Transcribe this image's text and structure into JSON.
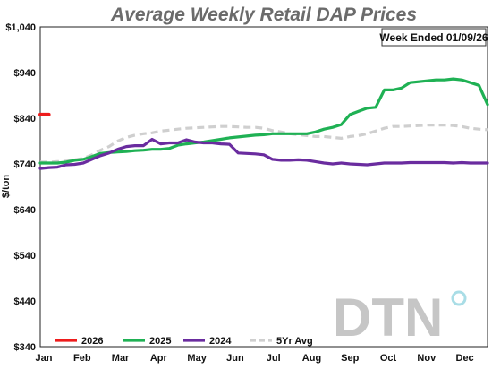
{
  "chart_data": {
    "type": "line",
    "title": "Average Weekly Retail DAP Prices",
    "annotation": "Week Ended 01/09/26",
    "ylabel": "$/ton",
    "xlabel": "",
    "ylim": [
      340,
      1040
    ],
    "yticks": [
      "$1,040",
      "$940",
      "$840",
      "$740",
      "$640",
      "$540",
      "$440",
      "$340"
    ],
    "ytick_values": [
      1040,
      940,
      840,
      740,
      640,
      540,
      440,
      340
    ],
    "xticks": [
      "Jan",
      "Feb",
      "Mar",
      "Apr",
      "May",
      "Jun",
      "Jul",
      "Aug",
      "Sep",
      "Oct",
      "Nov",
      "Dec"
    ],
    "x_unit": "week of year",
    "xlim": [
      1,
      53
    ],
    "grid": false,
    "legend_position": "bottom",
    "watermark": "DTN",
    "series": [
      {
        "name": "2026",
        "color": "#ee1c1c",
        "dash": false,
        "x": [
          1,
          2
        ],
        "y": [
          848,
          848
        ]
      },
      {
        "name": "2025",
        "color": "#1fb154",
        "dash": false,
        "x": [
          1,
          2,
          3,
          4,
          5,
          6,
          7,
          8,
          9,
          10,
          11,
          12,
          13,
          14,
          15,
          16,
          17,
          18,
          19,
          20,
          21,
          22,
          23,
          24,
          25,
          26,
          27,
          28,
          29,
          30,
          31,
          32,
          33,
          34,
          35,
          36,
          37,
          38,
          39,
          40,
          41,
          42,
          43,
          44,
          45,
          46,
          47,
          48,
          49,
          50,
          51,
          52,
          53
        ],
        "y": [
          742,
          742,
          742,
          744,
          748,
          750,
          756,
          763,
          765,
          766,
          767,
          769,
          770,
          772,
          772,
          774,
          781,
          784,
          786,
          788,
          791,
          794,
          797,
          799,
          801,
          803,
          804,
          806,
          806,
          806,
          806,
          806,
          810,
          816,
          820,
          826,
          848,
          855,
          862,
          864,
          902,
          902,
          906,
          918,
          920,
          922,
          924,
          924,
          926,
          924,
          918,
          912,
          870
        ]
      },
      {
        "name": "2024",
        "color": "#6a2c9f",
        "dash": false,
        "x": [
          1,
          2,
          3,
          4,
          5,
          6,
          7,
          8,
          9,
          10,
          11,
          12,
          13,
          14,
          15,
          16,
          17,
          18,
          19,
          20,
          21,
          22,
          23,
          24,
          25,
          26,
          27,
          28,
          29,
          30,
          31,
          32,
          33,
          34,
          35,
          36,
          37,
          38,
          39,
          40,
          41,
          42,
          43,
          44,
          45,
          46,
          47,
          48,
          49,
          50,
          51,
          52,
          53
        ],
        "y": [
          730,
          732,
          733,
          738,
          739,
          742,
          750,
          758,
          764,
          772,
          778,
          780,
          780,
          794,
          784,
          786,
          786,
          793,
          788,
          786,
          786,
          784,
          783,
          764,
          763,
          762,
          760,
          750,
          748,
          748,
          749,
          748,
          745,
          742,
          740,
          742,
          740,
          739,
          738,
          740,
          742,
          742,
          742,
          743,
          743,
          743,
          743,
          743,
          742,
          743,
          742,
          742,
          742
        ]
      },
      {
        "name": "5Yr Avg",
        "color": "#cfcfcf",
        "dash": true,
        "x": [
          1,
          2,
          3,
          4,
          5,
          6,
          7,
          8,
          9,
          10,
          11,
          12,
          13,
          14,
          15,
          16,
          17,
          18,
          19,
          20,
          21,
          22,
          23,
          24,
          25,
          26,
          27,
          28,
          29,
          30,
          31,
          32,
          33,
          34,
          35,
          36,
          37,
          38,
          39,
          40,
          41,
          42,
          43,
          44,
          45,
          46,
          47,
          48,
          49,
          50,
          51,
          52,
          53
        ],
        "y": [
          744,
          744,
          745,
          746,
          749,
          752,
          760,
          770,
          778,
          790,
          798,
          803,
          806,
          808,
          812,
          814,
          816,
          818,
          819,
          820,
          821,
          822,
          822,
          821,
          820,
          820,
          818,
          813,
          810,
          806,
          804,
          802,
          800,
          800,
          798,
          796,
          800,
          802,
          806,
          812,
          818,
          822,
          822,
          823,
          824,
          825,
          825,
          825,
          824,
          822,
          818,
          816,
          815
        ]
      }
    ]
  }
}
